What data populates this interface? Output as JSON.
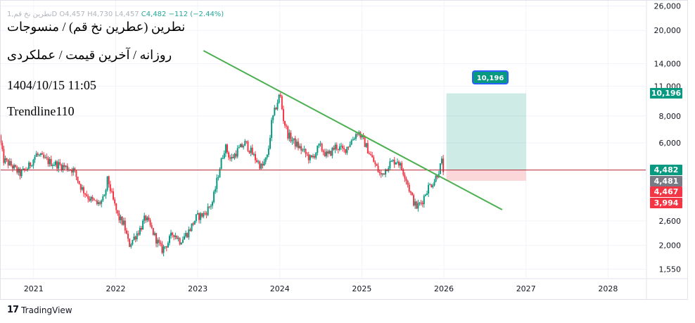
{
  "ohlc": {
    "symbol": "1,نطرین نخ قمD",
    "open": "O4,457",
    "high": "H4,730",
    "low": "L4,457",
    "close": "C4,482",
    "change": "−112 (−2.44%)"
  },
  "overlay": {
    "title": "نطرین (عطرین نخ قم) / منسوجات",
    "subtitle": "روزانه / آخرین قیمت / عملکردی",
    "datetime": "1404/10/15 11:05",
    "tag": "Trendline110"
  },
  "price_tags": [
    {
      "label": "10,196",
      "value": 10196,
      "color": "#089981"
    },
    {
      "label": "4,482",
      "value": 4482,
      "color": "#089981"
    },
    {
      "label": "4,481",
      "value": 4481,
      "color": "#787b86"
    },
    {
      "label": "4,467",
      "value": 4467,
      "color": "#f23645"
    },
    {
      "label": "3,994",
      "value": 3994,
      "color": "#f23645"
    }
  ],
  "target_callout": "10,196",
  "brand": "TradingView",
  "chart_data": {
    "type": "candlestick",
    "scale": "log",
    "x_unit": "year",
    "y_ticks": [
      {
        "label": "26,000",
        "value": 26000
      },
      {
        "label": "20,000",
        "value": 20000
      },
      {
        "label": "14,000",
        "value": 14000
      },
      {
        "label": "11,000",
        "value": 11000
      },
      {
        "label": "8,000",
        "value": 8000
      },
      {
        "label": "6,000",
        "value": 6000
      },
      {
        "label": "2,600",
        "value": 2600
      },
      {
        "label": "2,000",
        "value": 2000
      },
      {
        "label": "1,550",
        "value": 1550
      }
    ],
    "x_ticks": [
      {
        "label": "2021",
        "value": 2021
      },
      {
        "label": "2022",
        "value": 2022
      },
      {
        "label": "2023",
        "value": 2023
      },
      {
        "label": "2024",
        "value": 2024
      },
      {
        "label": "2025",
        "value": 2025
      },
      {
        "label": "2026",
        "value": 2026
      },
      {
        "label": "2027",
        "value": 2027
      },
      {
        "label": "2028",
        "value": 2028
      }
    ],
    "x_range": [
      2020.59,
      2028.46
    ],
    "y_range": [
      1400,
      27500
    ],
    "price_path": [
      [
        2020.6,
        6500
      ],
      [
        2020.65,
        5000
      ],
      [
        2020.75,
        4700
      ],
      [
        2020.85,
        4300
      ],
      [
        2020.95,
        4600
      ],
      [
        2021.05,
        5300
      ],
      [
        2021.2,
        4900
      ],
      [
        2021.35,
        4700
      ],
      [
        2021.5,
        4500
      ],
      [
        2021.6,
        3700
      ],
      [
        2021.7,
        3300
      ],
      [
        2021.8,
        3100
      ],
      [
        2021.88,
        3300
      ],
      [
        2021.92,
        4100
      ],
      [
        2021.98,
        3300
      ],
      [
        2022.05,
        2700
      ],
      [
        2022.12,
        2500
      ],
      [
        2022.18,
        2000
      ],
      [
        2022.25,
        2200
      ],
      [
        2022.32,
        2400
      ],
      [
        2022.38,
        2700
      ],
      [
        2022.45,
        2400
      ],
      [
        2022.52,
        2100
      ],
      [
        2022.58,
        1900
      ],
      [
        2022.65,
        2050
      ],
      [
        2022.72,
        2300
      ],
      [
        2022.8,
        2100
      ],
      [
        2022.9,
        2300
      ],
      [
        2023.0,
        2700
      ],
      [
        2023.1,
        2800
      ],
      [
        2023.2,
        3200
      ],
      [
        2023.28,
        4500
      ],
      [
        2023.35,
        5800
      ],
      [
        2023.42,
        5000
      ],
      [
        2023.5,
        5500
      ],
      [
        2023.6,
        6000
      ],
      [
        2023.7,
        5200
      ],
      [
        2023.8,
        4600
      ],
      [
        2023.87,
        5200
      ],
      [
        2023.92,
        7500
      ],
      [
        2023.97,
        8800
      ],
      [
        2024.02,
        10200
      ],
      [
        2024.06,
        7800
      ],
      [
        2024.12,
        6500
      ],
      [
        2024.2,
        6000
      ],
      [
        2024.3,
        5500
      ],
      [
        2024.4,
        5000
      ],
      [
        2024.5,
        5800
      ],
      [
        2024.6,
        5200
      ],
      [
        2024.7,
        5800
      ],
      [
        2024.8,
        5500
      ],
      [
        2024.9,
        6200
      ],
      [
        2024.97,
        6800
      ],
      [
        2025.05,
        6000
      ],
      [
        2025.15,
        5000
      ],
      [
        2025.25,
        4200
      ],
      [
        2025.35,
        4800
      ],
      [
        2025.45,
        5000
      ],
      [
        2025.55,
        4200
      ],
      [
        2025.62,
        3400
      ],
      [
        2025.68,
        3000
      ],
      [
        2025.75,
        3200
      ],
      [
        2025.82,
        3700
      ],
      [
        2025.9,
        4000
      ],
      [
        2025.96,
        4500
      ],
      [
        2026.0,
        5000
      ],
      [
        2026.01,
        4482
      ]
    ],
    "trendline": {
      "start": [
        2023.07,
        16100
      ],
      "end": [
        2026.71,
        2930
      ]
    },
    "horizontal_line": {
      "value": 4482
    },
    "position": {
      "x_start": 2026.03,
      "x_end": 2027.0,
      "entry": 4482,
      "target": 10196,
      "stop": 3994
    }
  }
}
